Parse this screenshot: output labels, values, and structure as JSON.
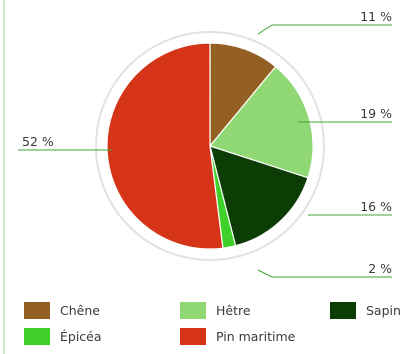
{
  "chart_data": {
    "type": "pie",
    "slices": [
      {
        "label": "Chêne",
        "value": 11,
        "value_label": "11 %",
        "color": "#945f22"
      },
      {
        "label": "Hêtre",
        "value": 19,
        "value_label": "19 %",
        "color": "#8fd873"
      },
      {
        "label": "Sapin",
        "value": 16,
        "value_label": "16 %",
        "color": "#0b3d05"
      },
      {
        "label": "Épicéa",
        "value": 2,
        "value_label": "2 %",
        "color": "#3fd12a"
      },
      {
        "label": "Pin maritime",
        "value": 52,
        "value_label": "52 %",
        "color": "#d63418"
      }
    ],
    "start_angle_deg": 0,
    "direction": "clockwise",
    "legend_position": "bottom",
    "label_line_color": "#3fa535",
    "frame_line_color": "#9fd48c"
  }
}
